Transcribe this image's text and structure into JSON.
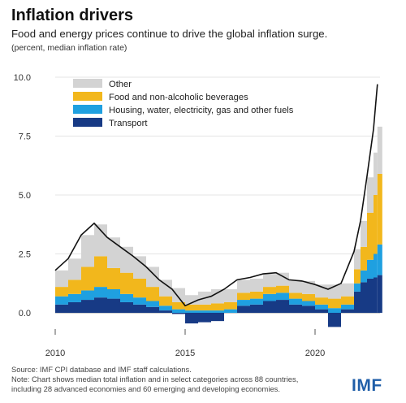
{
  "title": "Inflation drivers",
  "subtitle": "Food and energy prices continue to drive the global inflation surge.",
  "units": "(percent, median inflation rate)",
  "source": "Source: IMF CPI database and IMF staff calculations.",
  "note_line1": "Note: Chart shows median total inflation and in select categories across 88 countries,",
  "note_line2": "including 28 advanced economies and 60 emerging and developing economies.",
  "logo": "IMF",
  "colors": {
    "other": "#d3d3d3",
    "food": "#f2b71c",
    "housing": "#1fa0e0",
    "transport": "#173a85",
    "total": "#111111"
  },
  "chart_data": {
    "type": "bar",
    "stacked": true,
    "x_unit": "year (monthly observations)",
    "x": [
      2010.0,
      2010.5,
      2011.0,
      2011.5,
      2012.0,
      2012.5,
      2013.0,
      2013.5,
      2014.0,
      2014.5,
      2015.0,
      2015.5,
      2016.0,
      2016.5,
      2017.0,
      2017.5,
      2018.0,
      2018.5,
      2019.0,
      2019.5,
      2020.0,
      2020.5,
      2021.0,
      2021.5,
      2021.75,
      2022.0,
      2022.25,
      2022.4
    ],
    "xticks": [
      2010,
      2015,
      2020
    ],
    "yticks": [
      0.0,
      2.5,
      5.0,
      7.5,
      10.0
    ],
    "ytick_labels": [
      "0.0",
      "2.5",
      "5.0",
      "7.5",
      "10.0"
    ],
    "ylim": [
      -0.7,
      10.0
    ],
    "xlim": [
      2010.0,
      2022.5
    ],
    "legend_position": "top-left",
    "series": [
      {
        "name": "Transport",
        "values": [
          0.35,
          0.45,
          0.55,
          0.65,
          0.6,
          0.45,
          0.35,
          0.25,
          0.1,
          -0.05,
          -0.45,
          -0.4,
          -0.35,
          0.0,
          0.3,
          0.35,
          0.5,
          0.55,
          0.35,
          0.3,
          0.15,
          -0.6,
          0.15,
          0.9,
          1.3,
          1.45,
          1.5,
          1.6
        ]
      },
      {
        "name": "Housing, water, electricity, gas and other fuels",
        "values": [
          0.35,
          0.35,
          0.4,
          0.45,
          0.4,
          0.35,
          0.3,
          0.25,
          0.2,
          0.15,
          0.1,
          0.1,
          0.1,
          0.15,
          0.25,
          0.25,
          0.3,
          0.3,
          0.25,
          0.2,
          0.2,
          0.2,
          0.2,
          0.35,
          0.5,
          0.8,
          1.0,
          1.3
        ]
      },
      {
        "name": "Food and non-alcoholic beverages",
        "values": [
          0.4,
          0.6,
          1.0,
          1.3,
          0.9,
          0.9,
          0.8,
          0.6,
          0.4,
          0.3,
          0.25,
          0.25,
          0.3,
          0.3,
          0.3,
          0.3,
          0.3,
          0.3,
          0.25,
          0.3,
          0.3,
          0.4,
          0.35,
          0.6,
          1.0,
          2.0,
          2.5,
          3.0
        ]
      },
      {
        "name": "Other",
        "values": [
          0.7,
          0.9,
          1.35,
          1.35,
          1.3,
          1.1,
          0.95,
          0.85,
          0.7,
          0.6,
          0.4,
          0.55,
          0.6,
          0.55,
          0.55,
          0.55,
          0.55,
          0.55,
          0.55,
          0.55,
          0.55,
          0.6,
          0.55,
          0.85,
          1.1,
          1.5,
          1.8,
          2.0
        ]
      }
    ],
    "total_series": {
      "name": "Total",
      "values": [
        1.8,
        2.3,
        3.3,
        3.8,
        3.2,
        2.8,
        2.4,
        1.95,
        1.4,
        1.0,
        0.3,
        0.55,
        0.7,
        1.0,
        1.4,
        1.5,
        1.65,
        1.7,
        1.4,
        1.35,
        1.2,
        1.0,
        1.25,
        2.6,
        3.9,
        5.8,
        7.8,
        9.7
      ]
    }
  }
}
